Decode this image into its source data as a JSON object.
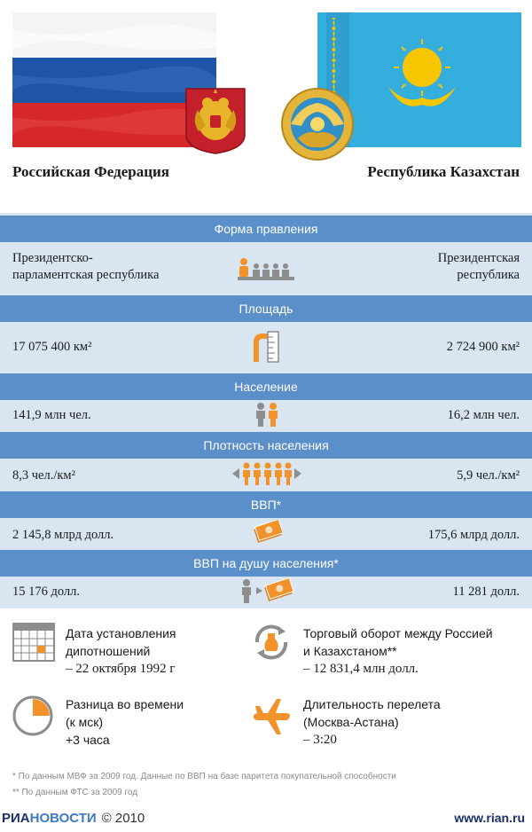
{
  "left_country": {
    "name": "Российская Федерация",
    "flag_colors": [
      "#ffffff",
      "#1e55a6",
      "#d62828"
    ],
    "coat_icon": "russian-eagle-icon"
  },
  "right_country": {
    "name": "Республика Казахстан",
    "flag_colors": [
      "#34aedd",
      "#f7c600"
    ],
    "coat_icon": "kazakh-emblem-icon"
  },
  "rows": [
    {
      "header": "Форма правления",
      "left": [
        "Президентско-",
        "парламентская республика"
      ],
      "right": [
        "Президентская",
        "республика"
      ],
      "icon": "parliament-icon"
    },
    {
      "header": "Площадь",
      "left": [
        "17 075 400 км²"
      ],
      "right": [
        "2 724 900 км²"
      ],
      "icon": "ruler-icon"
    },
    {
      "header": "Население",
      "left": [
        "141,9 млн чел."
      ],
      "right": [
        "16,2 млн чел."
      ],
      "icon": "people-icon"
    },
    {
      "header": "Плотность населения",
      "left": [
        "8,3 чел./км²"
      ],
      "right": [
        "5,9 чел./км²"
      ],
      "icon": "density-icon"
    },
    {
      "header": "ВВП*",
      "left": [
        "2 145,8 млрд долл."
      ],
      "right": [
        "175,6 млрд долл."
      ],
      "icon": "money-icon"
    },
    {
      "header": "ВВП на душу населения*",
      "left": [
        "15 176 долл."
      ],
      "right": [
        "11 281 долл."
      ],
      "icon": "person-money-icon"
    }
  ],
  "info": {
    "diplomacy": [
      "Дата установления",
      "дипотношений",
      "– 22 октября 1992 г"
    ],
    "trade": [
      "Торговый оборот между Россией",
      "и Казахстаном**",
      "– 12 831,4 млн долл."
    ],
    "time_diff": [
      "Разница во времени",
      "(к мск)",
      "+3 часа"
    ],
    "flight": [
      "Длительность перелета",
      "(Москва-Астана)",
      "– 3:20"
    ],
    "accent_color": "#f2922b"
  },
  "footnotes": [
    "* По данным МВФ за 2009 год. Данные по ВВП на базе паритета покупательной способности",
    "** По данным ФТС за 2009 год"
  ],
  "footer": {
    "brand_ria": "РИА",
    "brand_novosti": "НОВОСТИ",
    "copyright": "© 2010",
    "site": "www.rian.ru"
  }
}
